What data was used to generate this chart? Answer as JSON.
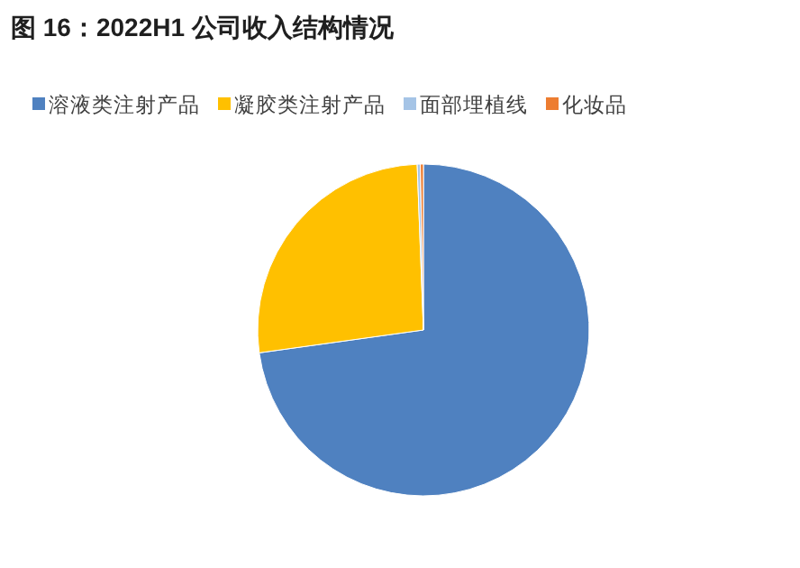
{
  "chart_data": {
    "type": "pie",
    "title": "图 16：2022H1 公司收入结构情况",
    "categories": [
      "溶液类注射产品",
      "凝胶类注射产品",
      "面部埋植线",
      "化妆品"
    ],
    "values": [
      72.8,
      26.6,
      0.3,
      0.3
    ],
    "colors": [
      "#4f81c0",
      "#ffc000",
      "#a5c4e6",
      "#ed7d31"
    ],
    "legend": "top"
  }
}
